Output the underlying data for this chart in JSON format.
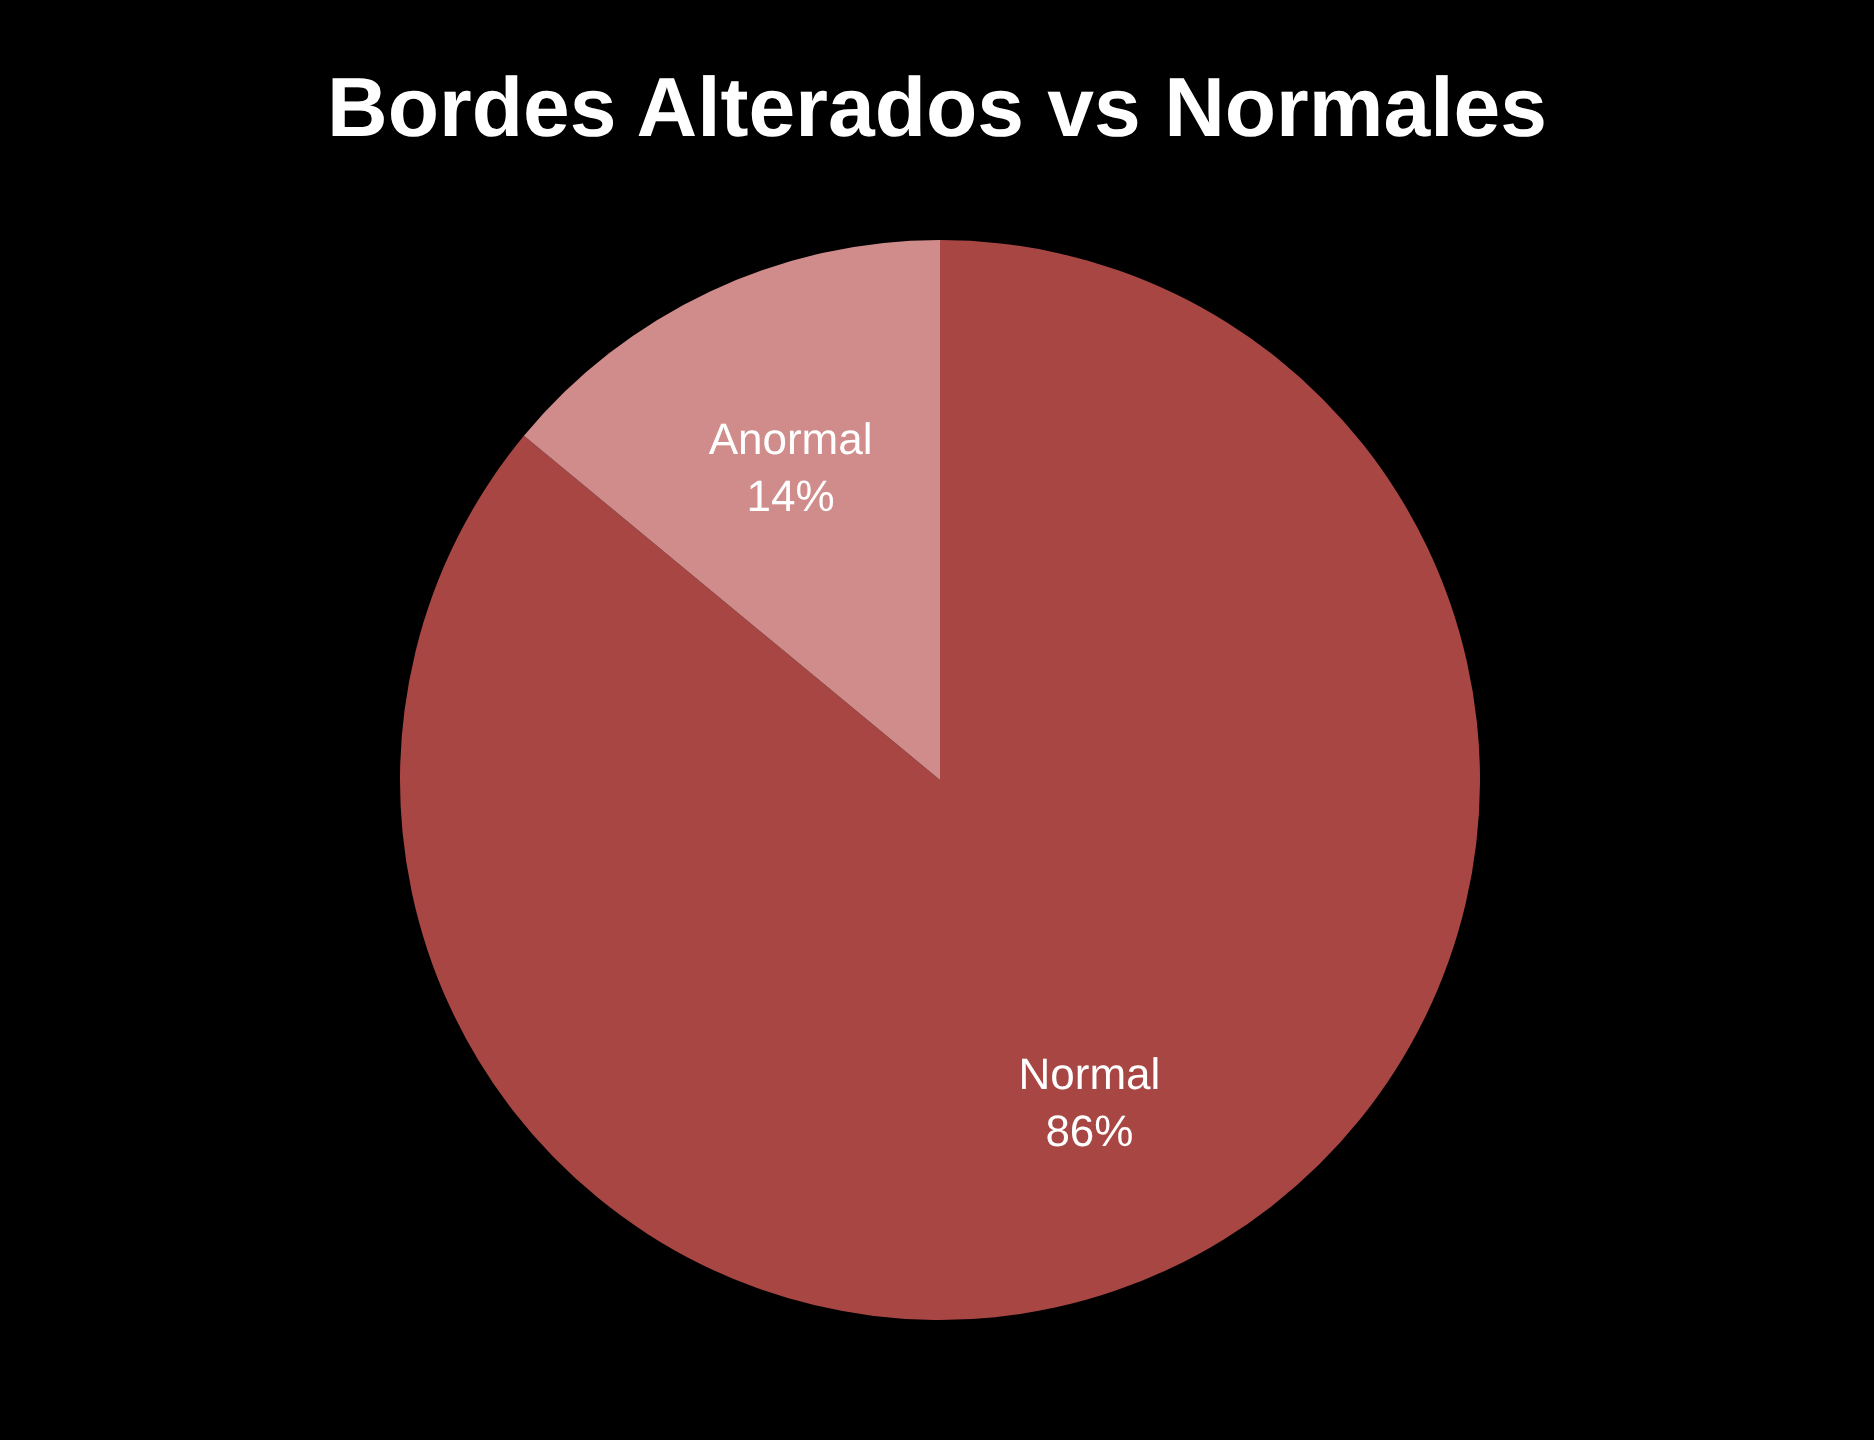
{
  "chart_data": {
    "type": "pie",
    "title": "Bordes Alterados vs Normales",
    "categories": [
      "Normal",
      "Anormal"
    ],
    "values": [
      86,
      14
    ],
    "colors": [
      "#a84644",
      "#d08c8a"
    ],
    "value_labels": [
      "86%",
      "14%"
    ]
  }
}
